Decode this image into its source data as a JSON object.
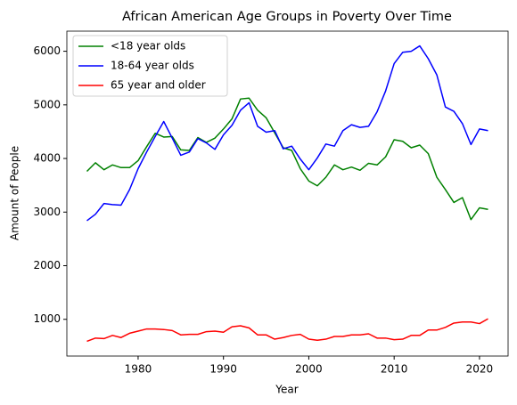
{
  "chart_data": {
    "type": "line",
    "title": "African American Age Groups in Poverty Over Time",
    "x_label": "Year",
    "y_label": "Amount of People",
    "x": [
      1974,
      1975,
      1976,
      1977,
      1978,
      1979,
      1980,
      1981,
      1982,
      1983,
      1984,
      1985,
      1986,
      1987,
      1988,
      1989,
      1990,
      1991,
      1992,
      1993,
      1994,
      1995,
      1996,
      1997,
      1998,
      1999,
      2000,
      2001,
      2002,
      2003,
      2004,
      2005,
      2006,
      2007,
      2008,
      2009,
      2010,
      2011,
      2012,
      2013,
      2014,
      2015,
      2016,
      2017,
      2018,
      2019,
      2020,
      2021
    ],
    "series": [
      {
        "name": "<18 year olds",
        "color": "#008000",
        "values": [
          3760,
          3920,
          3790,
          3880,
          3830,
          3830,
          3960,
          4220,
          4470,
          4400,
          4410,
          4160,
          4150,
          4390,
          4300,
          4380,
          4550,
          4740,
          5110,
          5125,
          4900,
          4760,
          4480,
          4200,
          4150,
          3810,
          3580,
          3490,
          3650,
          3880,
          3790,
          3840,
          3780,
          3910,
          3880,
          4030,
          4350,
          4320,
          4200,
          4250,
          4090,
          3650,
          3420,
          3180,
          3270,
          2860,
          3080,
          3050
        ]
      },
      {
        "name": "18-64 year olds",
        "color": "#0000ff",
        "values": [
          2840,
          2960,
          3160,
          3140,
          3130,
          3420,
          3810,
          4120,
          4410,
          4690,
          4380,
          4060,
          4120,
          4370,
          4290,
          4170,
          4440,
          4620,
          4900,
          5040,
          4600,
          4490,
          4520,
          4180,
          4230,
          3990,
          3790,
          4010,
          4270,
          4230,
          4520,
          4630,
          4580,
          4600,
          4870,
          5260,
          5770,
          5980,
          6000,
          6100,
          5860,
          5560,
          4960,
          4880,
          4650,
          4260,
          4550,
          4520
        ]
      },
      {
        "name": "65 year and older",
        "color": "#ff0000",
        "values": [
          590,
          650,
          640,
          700,
          660,
          740,
          780,
          820,
          820,
          810,
          790,
          710,
          720,
          720,
          770,
          780,
          760,
          860,
          880,
          840,
          710,
          710,
          630,
          660,
          700,
          720,
          630,
          610,
          630,
          680,
          680,
          710,
          710,
          730,
          650,
          650,
          620,
          630,
          700,
          700,
          800,
          800,
          850,
          930,
          950,
          950,
          920,
          1010
        ]
      }
    ],
    "xlim": [
      1971.65,
      2023.35
    ],
    "xticks": [
      1980,
      1990,
      2000,
      2010,
      2020
    ],
    "ylim": [
      315,
      6375
    ],
    "yticks": [
      1000,
      2000,
      3000,
      4000,
      5000,
      6000
    ],
    "legend": "upper left",
    "grid": false
  }
}
